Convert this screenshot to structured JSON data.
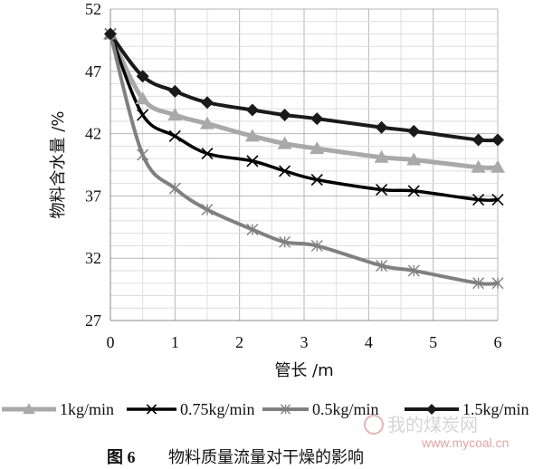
{
  "chart_data": {
    "type": "line",
    "xlabel": "管长 /m",
    "ylabel": "物料含水量 /%",
    "xlim": [
      0,
      6
    ],
    "ylim": [
      27,
      52
    ],
    "x_ticks": [
      "0",
      "1",
      "2",
      "3",
      "4",
      "5",
      "6"
    ],
    "y_ticks": [
      "27",
      "32",
      "37",
      "42",
      "47",
      "52"
    ],
    "grid": true,
    "legend_position": "bottom",
    "series": [
      {
        "name": "1kg/min",
        "color": "#a9a9a9",
        "marker": "triangle",
        "x": [
          0,
          0.5,
          1.0,
          1.5,
          2.2,
          2.7,
          3.2,
          4.2,
          4.7,
          5.7,
          6.0
        ],
        "y": [
          50.0,
          44.8,
          43.5,
          42.8,
          41.8,
          41.2,
          40.8,
          40.1,
          39.9,
          39.3,
          39.3
        ]
      },
      {
        "name": "0.75kg/min",
        "color": "#000000",
        "marker": "x",
        "x": [
          0,
          0.5,
          1.0,
          1.5,
          2.2,
          2.7,
          3.2,
          4.2,
          4.7,
          5.7,
          6.0
        ],
        "y": [
          50.0,
          43.5,
          41.8,
          40.4,
          39.8,
          39.0,
          38.3,
          37.5,
          37.4,
          36.7,
          36.7
        ]
      },
      {
        "name": "0.5kg/min",
        "color": "#808080",
        "marker": "asterisk",
        "x": [
          0,
          0.5,
          1.0,
          1.5,
          2.2,
          2.7,
          3.2,
          4.2,
          4.7,
          5.7,
          6.0
        ],
        "y": [
          50.0,
          40.3,
          37.6,
          35.9,
          34.3,
          33.3,
          33.0,
          31.4,
          31.0,
          30.0,
          30.0
        ]
      },
      {
        "name": "1.5kg/min",
        "color": "#1a1a1a",
        "marker": "diamond",
        "x": [
          0,
          0.5,
          1.0,
          1.5,
          2.2,
          2.7,
          3.2,
          4.2,
          4.7,
          5.7,
          6.0
        ],
        "y": [
          50.0,
          46.6,
          45.4,
          44.5,
          43.9,
          43.5,
          43.2,
          42.5,
          42.2,
          41.5,
          41.5
        ]
      }
    ]
  },
  "caption": {
    "label": "图 6",
    "text": "物料质量流量对干燥的影响"
  },
  "watermark": {
    "cn": "我的煤炭网",
    "url": "www.mycoal.cn"
  }
}
